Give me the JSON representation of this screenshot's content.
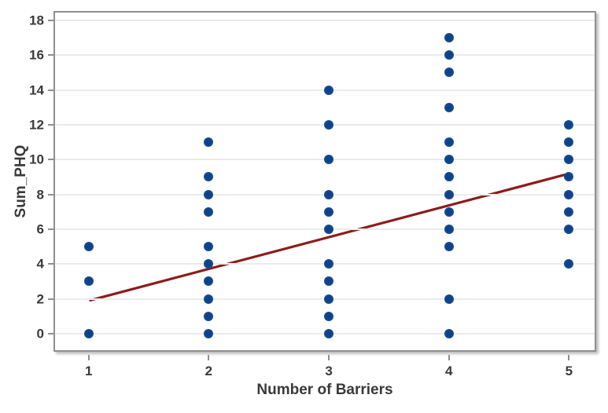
{
  "figure": {
    "xlabel": "Number of Barriers",
    "ylabel": "Sum_PHQ"
  },
  "chart_data": {
    "type": "scatter",
    "title": "",
    "xlabel": "Number of Barriers",
    "ylabel": "Sum_PHQ",
    "xlim": [
      0.72,
      5.24
    ],
    "ylim": [
      -1.13,
      18.45
    ],
    "x_ticks": [
      1,
      2,
      3,
      4,
      5
    ],
    "y_ticks": [
      0,
      2,
      4,
      6,
      8,
      10,
      12,
      14,
      16,
      18
    ],
    "grid": "horizontal-light",
    "legend": "none",
    "points": [
      {
        "x": 1,
        "y": 0
      },
      {
        "x": 1,
        "y": 3
      },
      {
        "x": 1,
        "y": 5
      },
      {
        "x": 2,
        "y": 0
      },
      {
        "x": 2,
        "y": 1
      },
      {
        "x": 2,
        "y": 2
      },
      {
        "x": 2,
        "y": 3
      },
      {
        "x": 2,
        "y": 4
      },
      {
        "x": 2,
        "y": 5
      },
      {
        "x": 2,
        "y": 7
      },
      {
        "x": 2,
        "y": 8
      },
      {
        "x": 2,
        "y": 9
      },
      {
        "x": 2,
        "y": 11
      },
      {
        "x": 3,
        "y": 0
      },
      {
        "x": 3,
        "y": 1
      },
      {
        "x": 3,
        "y": 2
      },
      {
        "x": 3,
        "y": 3
      },
      {
        "x": 3,
        "y": 4
      },
      {
        "x": 3,
        "y": 6
      },
      {
        "x": 3,
        "y": 7
      },
      {
        "x": 3,
        "y": 8
      },
      {
        "x": 3,
        "y": 10
      },
      {
        "x": 3,
        "y": 12
      },
      {
        "x": 3,
        "y": 14
      },
      {
        "x": 4,
        "y": 0
      },
      {
        "x": 4,
        "y": 2
      },
      {
        "x": 4,
        "y": 5
      },
      {
        "x": 4,
        "y": 6
      },
      {
        "x": 4,
        "y": 7
      },
      {
        "x": 4,
        "y": 8
      },
      {
        "x": 4,
        "y": 9
      },
      {
        "x": 4,
        "y": 10
      },
      {
        "x": 4,
        "y": 11
      },
      {
        "x": 4,
        "y": 13
      },
      {
        "x": 4,
        "y": 15
      },
      {
        "x": 4,
        "y": 16
      },
      {
        "x": 4,
        "y": 17
      },
      {
        "x": 5,
        "y": 4
      },
      {
        "x": 5,
        "y": 6
      },
      {
        "x": 5,
        "y": 7
      },
      {
        "x": 5,
        "y": 8
      },
      {
        "x": 5,
        "y": 9
      },
      {
        "x": 5,
        "y": 10
      },
      {
        "x": 5,
        "y": 11
      },
      {
        "x": 5,
        "y": 12
      }
    ],
    "fit_line": {
      "x1": 1,
      "y1": 1.75,
      "x2": 5,
      "y2": 9.05,
      "width": 3.2
    },
    "colors": {
      "marker": "#16509a",
      "marker_core": "#0f4186",
      "line": "#8e1b1b",
      "grid": "#ebebeb",
      "border": "#8f8f8f",
      "text": "#3a3a3a"
    }
  }
}
